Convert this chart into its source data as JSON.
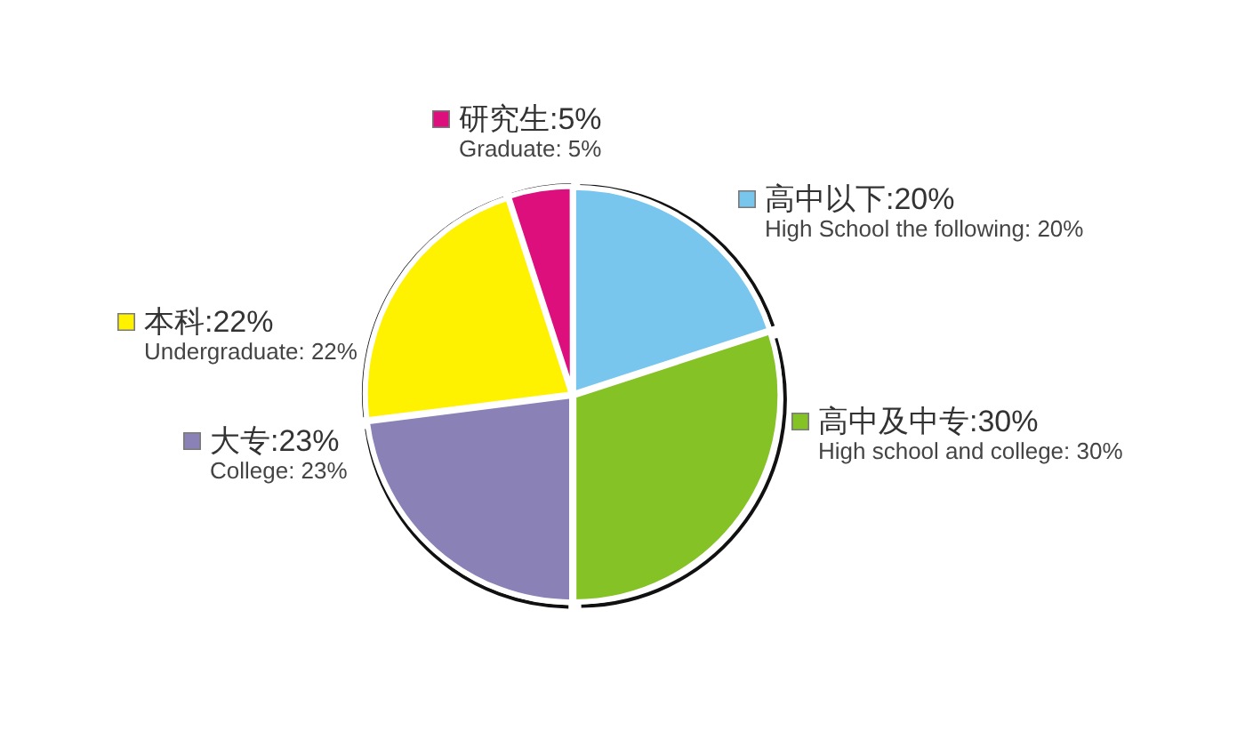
{
  "chart_data": {
    "type": "pie",
    "categories": [
      "高中以下",
      "高中及中专",
      "大专",
      "本科",
      "研究生"
    ],
    "values": [
      20,
      30,
      23,
      22,
      5
    ],
    "colors": [
      "#78c5ee",
      "#84c225",
      "#8a81b7",
      "#fff200",
      "#dc0f7c"
    ],
    "value_labels": [
      "20%",
      "30%",
      "23%",
      "22%",
      "5%"
    ],
    "annotations": [
      "High School the following: 20%",
      "High school and college: 30%",
      "College: 23%",
      "Undergraduate: 22%",
      "Graduate: 5%"
    ],
    "legend": "top"
  }
}
